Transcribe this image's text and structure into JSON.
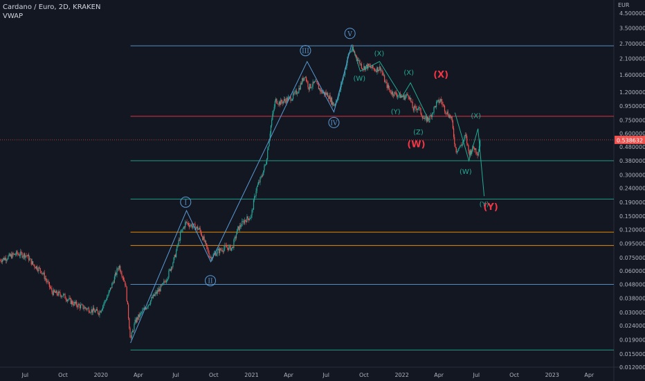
{
  "header": {
    "title": "Cardano / Euro, 2D, KRAKEN",
    "indicator": "VWAP"
  },
  "axis": {
    "currency": "EUR",
    "current_price": "0.538632",
    "price_ticks": [
      "4.500000",
      "3.500000",
      "2.700000",
      "2.100000",
      "1.600000",
      "1.200000",
      "0.950000",
      "0.750000",
      "0.600000",
      "0.480000",
      "0.380000",
      "0.300000",
      "0.240000",
      "0.190000",
      "0.150000",
      "0.120000",
      "0.095000",
      "0.075000",
      "0.060000",
      "0.048000",
      "0.038000",
      "0.030000",
      "0.024000",
      "0.019000",
      "0.015000",
      "0.012000"
    ],
    "time_ticks": [
      "Jul",
      "Oct",
      "2020",
      "Apr",
      "Jul",
      "Oct",
      "2021",
      "Apr",
      "Jul",
      "Oct",
      "2022",
      "Apr",
      "Jul",
      "Oct",
      "2023",
      "Apr"
    ]
  },
  "colors": {
    "background": "#131722",
    "up": "#26a69a",
    "down": "#ef5350",
    "blue_line": "#5b9bd5",
    "teal_wave": "#22ab94",
    "red_wave": "#f23645",
    "orange_line": "#ff9800"
  },
  "chart_data": {
    "type": "candlestick",
    "title": "Cardano / Euro, 2D, KRAKEN",
    "scale": "log",
    "ylim": [
      0.012,
      5.6
    ],
    "xlim": [
      "2019-05-01",
      "2023-05-31"
    ],
    "price_path": [
      [
        "2019-05-01",
        0.072
      ],
      [
        "2019-06-10",
        0.08
      ],
      [
        "2019-07-05",
        0.078
      ],
      [
        "2019-07-20",
        0.067
      ],
      [
        "2019-08-10",
        0.06
      ],
      [
        "2019-09-05",
        0.042
      ],
      [
        "2019-10-01",
        0.04
      ],
      [
        "2019-10-25",
        0.035
      ],
      [
        "2019-11-15",
        0.033
      ],
      [
        "2019-12-10",
        0.031
      ],
      [
        "2019-12-28",
        0.03
      ],
      [
        "2020-01-20",
        0.041
      ],
      [
        "2020-02-14",
        0.066
      ],
      [
        "2020-03-01",
        0.048
      ],
      [
        "2020-03-13",
        0.019
      ],
      [
        "2020-03-25",
        0.026
      ],
      [
        "2020-04-20",
        0.033
      ],
      [
        "2020-05-10",
        0.04
      ],
      [
        "2020-05-30",
        0.047
      ],
      [
        "2020-06-12",
        0.056
      ],
      [
        "2020-06-28",
        0.075
      ],
      [
        "2020-07-12",
        0.11
      ],
      [
        "2020-07-25",
        0.135
      ],
      [
        "2020-08-10",
        0.128
      ],
      [
        "2020-08-28",
        0.12
      ],
      [
        "2020-09-10",
        0.095
      ],
      [
        "2020-09-23",
        0.075
      ],
      [
        "2020-10-10",
        0.083
      ],
      [
        "2020-10-30",
        0.089
      ],
      [
        "2020-11-15",
        0.088
      ],
      [
        "2020-11-28",
        0.12
      ],
      [
        "2020-12-15",
        0.14
      ],
      [
        "2020-12-31",
        0.15
      ],
      [
        "2021-01-12",
        0.235
      ],
      [
        "2021-01-25",
        0.29
      ],
      [
        "2021-02-05",
        0.37
      ],
      [
        "2021-02-18",
        0.72
      ],
      [
        "2021-02-28",
        1.05
      ],
      [
        "2021-03-10",
        1.0
      ],
      [
        "2021-03-25",
        1.05
      ],
      [
        "2021-04-10",
        1.1
      ],
      [
        "2021-04-25",
        1.25
      ],
      [
        "2021-05-10",
        1.6
      ],
      [
        "2021-05-20",
        1.3
      ],
      [
        "2021-06-05",
        1.4
      ],
      [
        "2021-06-20",
        1.2
      ],
      [
        "2021-07-05",
        1.15
      ],
      [
        "2021-07-20",
        0.96
      ],
      [
        "2021-08-01",
        1.15
      ],
      [
        "2021-08-15",
        1.7
      ],
      [
        "2021-08-25",
        2.3
      ],
      [
        "2021-09-02",
        2.45
      ],
      [
        "2021-09-15",
        2.1
      ],
      [
        "2021-09-28",
        1.8
      ],
      [
        "2021-10-10",
        1.85
      ],
      [
        "2021-10-28",
        1.75
      ],
      [
        "2021-11-10",
        1.8
      ],
      [
        "2021-11-22",
        1.4
      ],
      [
        "2021-12-05",
        1.2
      ],
      [
        "2021-12-20",
        1.15
      ],
      [
        "2022-01-05",
        1.1
      ],
      [
        "2022-01-18",
        1.15
      ],
      [
        "2022-01-28",
        0.9
      ],
      [
        "2022-02-10",
        0.93
      ],
      [
        "2022-02-25",
        0.75
      ],
      [
        "2022-03-10",
        0.78
      ],
      [
        "2022-03-25",
        0.98
      ],
      [
        "2022-04-05",
        1.05
      ],
      [
        "2022-04-18",
        0.87
      ],
      [
        "2022-05-01",
        0.78
      ],
      [
        "2022-05-12",
        0.45
      ],
      [
        "2022-05-25",
        0.49
      ],
      [
        "2022-06-05",
        0.58
      ],
      [
        "2022-06-13",
        0.43
      ],
      [
        "2022-06-25",
        0.475
      ],
      [
        "2022-07-05",
        0.43
      ],
      [
        "2022-07-10",
        0.54
      ]
    ],
    "horizontal_levels": [
      {
        "price": 2.6,
        "color": "blue_line",
        "from": "2020-03-13"
      },
      {
        "price": 0.8,
        "color": "red_wave",
        "from": "2020-03-13"
      },
      {
        "price": 0.38,
        "color": "teal_wave",
        "from": "2020-03-13"
      },
      {
        "price": 0.2,
        "color": "teal_wave",
        "from": "2020-03-13"
      },
      {
        "price": 0.115,
        "color": "orange_line",
        "from": "2020-03-13"
      },
      {
        "price": 0.092,
        "color": "orange_line",
        "from": "2020-03-13"
      },
      {
        "price": 0.048,
        "color": "blue_line",
        "from": "2020-03-13"
      },
      {
        "price": 0.016,
        "color": "teal_wave",
        "from": "2020-03-13"
      }
    ],
    "impulse_line": [
      [
        "2020-03-13",
        0.018
      ],
      [
        "2020-07-27",
        0.165
      ],
      [
        "2020-09-24",
        0.07
      ],
      [
        "2021-05-16",
        2.0
      ],
      [
        "2021-07-20",
        0.86
      ],
      [
        "2021-09-01",
        2.65
      ]
    ],
    "correction_lines": [
      {
        "color": "teal_wave",
        "points": [
          [
            "2021-09-03",
            2.6
          ],
          [
            "2021-09-22",
            1.7
          ],
          [
            "2021-11-08",
            2.0
          ],
          [
            "2022-01-01",
            1.1
          ],
          [
            "2022-01-22",
            1.4
          ],
          [
            "2022-03-10",
            0.72
          ]
        ]
      },
      {
        "color": "teal_wave",
        "points": [
          [
            "2022-05-10",
            0.85
          ],
          [
            "2022-06-13",
            0.38
          ],
          [
            "2022-07-05",
            0.65
          ],
          [
            "2022-07-20",
            0.21
          ]
        ]
      }
    ],
    "wave_labels": [
      {
        "text": "I",
        "date": "2020-07-25",
        "price": 0.19,
        "style": "circle",
        "color": "blue_line"
      },
      {
        "text": "II",
        "date": "2020-09-23",
        "price": 0.051,
        "style": "circle",
        "color": "blue_line"
      },
      {
        "text": "III",
        "date": "2021-05-12",
        "price": 2.4,
        "style": "circle",
        "color": "blue_line"
      },
      {
        "text": "IV",
        "date": "2021-07-20",
        "price": 0.72,
        "style": "circle",
        "color": "blue_line"
      },
      {
        "text": "V",
        "date": "2021-08-28",
        "price": 3.2,
        "style": "circle",
        "color": "blue_line"
      },
      {
        "text": "(W)",
        "date": "2021-09-20",
        "price": 1.52,
        "style": "plain",
        "color": "teal_wave"
      },
      {
        "text": "(X)",
        "date": "2021-11-07",
        "price": 2.3,
        "style": "plain",
        "color": "teal_wave"
      },
      {
        "text": "(X)",
        "date": "2022-01-18",
        "price": 1.68,
        "style": "plain",
        "color": "teal_wave"
      },
      {
        "text": "(Y)",
        "date": "2021-12-17",
        "price": 0.87,
        "style": "plain",
        "color": "teal_wave"
      },
      {
        "text": "(Z)",
        "date": "2022-02-10",
        "price": 0.62,
        "style": "plain",
        "color": "teal_wave"
      },
      {
        "text": "(X)",
        "date": "2022-04-06",
        "price": 1.6,
        "style": "bold",
        "color": "red_wave"
      },
      {
        "text": "(W)",
        "date": "2022-02-05",
        "price": 0.5,
        "style": "bold",
        "color": "red_wave"
      },
      {
        "text": "(X)",
        "date": "2022-06-30",
        "price": 0.81,
        "style": "plain",
        "color": "teal_wave"
      },
      {
        "text": "(W)",
        "date": "2022-06-05",
        "price": 0.32,
        "style": "plain",
        "color": "teal_wave"
      },
      {
        "text": "(Y)",
        "date": "2022-07-20",
        "price": 0.185,
        "style": "plain",
        "color": "teal_wave"
      },
      {
        "text": "(Y)",
        "date": "2022-08-05",
        "price": 0.175,
        "style": "bold",
        "color": "red_wave"
      }
    ]
  }
}
